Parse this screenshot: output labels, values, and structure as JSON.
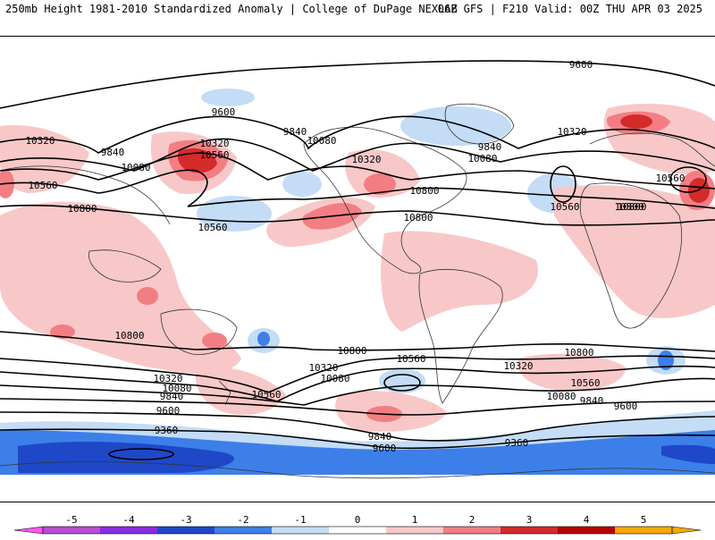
{
  "header": {
    "left": "250mb Height 1981-2010 Standardized Anomaly | College of DuPage NEXLAB",
    "right": "06Z GFS | F210 Valid: 00Z THU APR 03 2025"
  },
  "colors": {
    "neg5": "#ff55ee",
    "neg4": "#8a2be2",
    "neg3": "#1e48c8",
    "neg2": "#3d7fe8",
    "neg1": "#c4dcf6",
    "zero": "#ffffff",
    "pos1": "#f8c8c8",
    "pos2": "#f27e84",
    "pos3": "#d42a2a",
    "pos4": "#b80000",
    "pos5": "#f5a800",
    "contour": "#000000",
    "coast": "#333333"
  },
  "colorbar": {
    "ticks": [
      "-5",
      "-4",
      "-3",
      "-2",
      "-1",
      "0",
      "1",
      "2",
      "3",
      "4",
      "5"
    ]
  },
  "contour_labels": [
    "9600",
    "9600",
    "9840",
    "10080",
    "10320",
    "10560",
    "10800",
    "9840",
    "10080",
    "10320",
    "10560",
    "10560",
    "10800",
    "10080",
    "9840",
    "10320",
    "10560",
    "10800",
    "10320",
    "10560",
    "10800",
    "10800",
    "10320",
    "10080",
    "9840",
    "9600",
    "9360",
    "10560",
    "10320",
    "10080",
    "10800",
    "10560",
    "9840",
    "9600",
    "10800",
    "10560",
    "10320",
    "10080",
    "9840",
    "9600",
    "9360",
    "10800"
  ]
}
